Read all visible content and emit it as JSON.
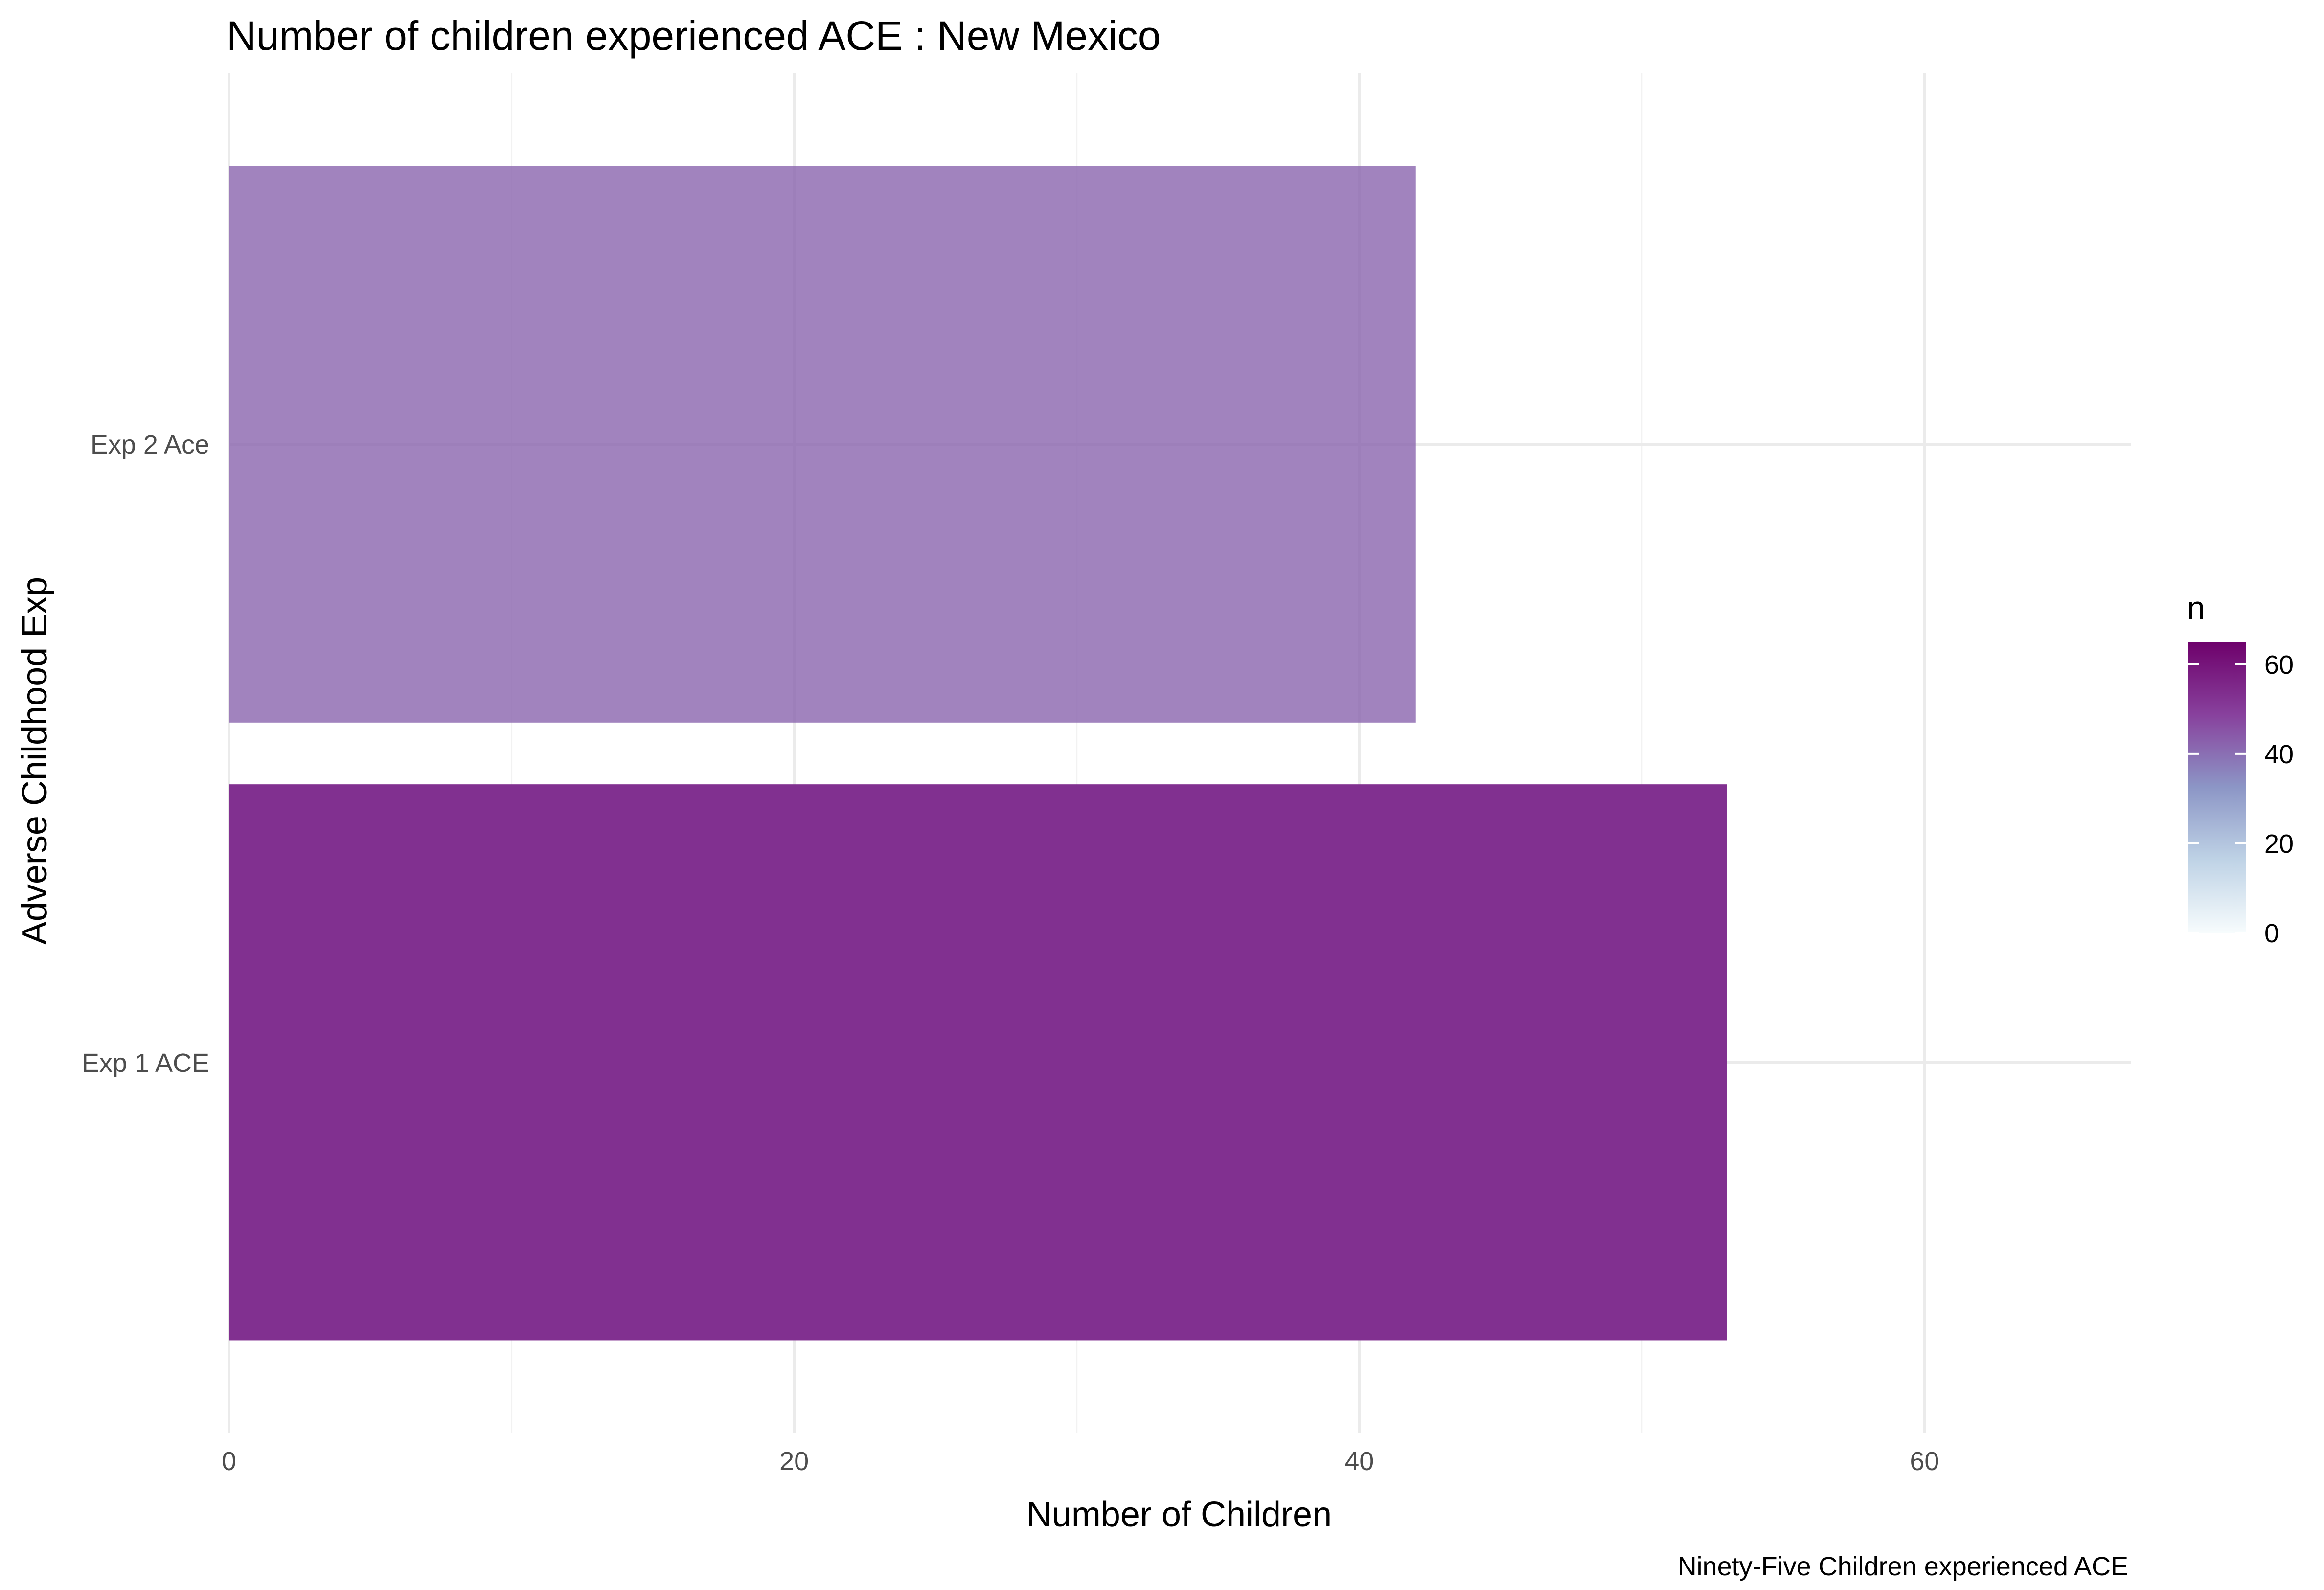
{
  "chart_data": {
    "type": "bar",
    "orientation": "horizontal",
    "title": "Number of children experienced ACE : New Mexico",
    "xlabel": "Number of Children",
    "ylabel": "Adverse Childhood Exp",
    "caption": "Ninety-Five Children experienced ACE",
    "categories": [
      "Exp 1 ACE",
      "Exp 2 Ace"
    ],
    "values": [
      53,
      42
    ],
    "xlim": [
      0,
      67.3
    ],
    "x_ticks": [
      0,
      20,
      40,
      60
    ],
    "grid": true,
    "legend": {
      "title": "n",
      "type": "colorbar",
      "placement": "right",
      "range": [
        0,
        65
      ],
      "ticks": [
        0,
        20,
        40,
        60
      ],
      "colors": [
        "#f7fcfd",
        "#bfd3e6",
        "#8c96c6",
        "#88419d",
        "#6e016b"
      ]
    }
  }
}
